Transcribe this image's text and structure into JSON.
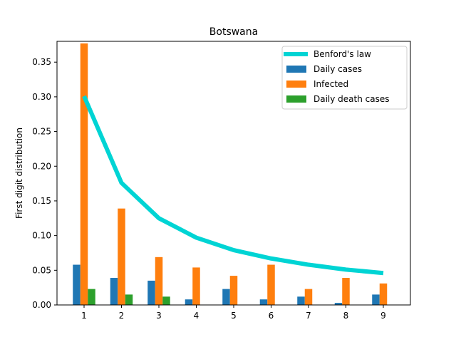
{
  "chart_data": {
    "type": "bar",
    "title": "Botswana",
    "xlabel": "",
    "ylabel": "First digit distribution",
    "categories": [
      "1",
      "2",
      "3",
      "4",
      "5",
      "6",
      "7",
      "8",
      "9"
    ],
    "ylim": [
      0,
      0.38
    ],
    "yticks": [
      0.0,
      0.05,
      0.1,
      0.15,
      0.2,
      0.25,
      0.3,
      0.35
    ],
    "ytick_labels": [
      "0.00",
      "0.05",
      "0.10",
      "0.15",
      "0.20",
      "0.25",
      "0.30",
      "0.35"
    ],
    "legend_position": "top-right",
    "line_series": {
      "name": "Benford's law",
      "color": "#00d4d4",
      "values": [
        0.301,
        0.176,
        0.125,
        0.097,
        0.079,
        0.067,
        0.058,
        0.051,
        0.046
      ]
    },
    "series": [
      {
        "name": "Daily cases",
        "color": "#1f77b4",
        "values": [
          0.058,
          0.039,
          0.035,
          0.008,
          0.023,
          0.008,
          0.012,
          0.003,
          0.015
        ]
      },
      {
        "name": "Infected",
        "color": "#ff7f0e",
        "values": [
          0.377,
          0.139,
          0.069,
          0.054,
          0.042,
          0.058,
          0.023,
          0.039,
          0.031
        ]
      },
      {
        "name": "Daily death cases",
        "color": "#2ca02c",
        "values": [
          0.023,
          0.015,
          0.012,
          0,
          0,
          0,
          0,
          0,
          0
        ]
      }
    ]
  }
}
